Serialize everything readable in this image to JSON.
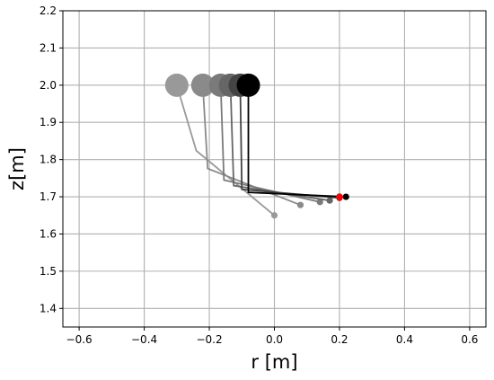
{
  "chart_data": {
    "type": "line",
    "title": "",
    "xlabel": "r [m]",
    "ylabel": "z[m]",
    "xlim": [
      -0.65,
      0.65
    ],
    "ylim": [
      1.35,
      2.2
    ],
    "xticks": [
      -0.6,
      -0.4,
      -0.2,
      0.0,
      0.2,
      0.4,
      0.6
    ],
    "xtick_labels": [
      "−0.6",
      "−0.4",
      "−0.2",
      "0.0",
      "0.2",
      "0.4",
      "0.6"
    ],
    "yticks": [
      1.4,
      1.5,
      1.6,
      1.7,
      1.8,
      1.9,
      2.0,
      2.1,
      2.2
    ],
    "ytick_labels": [
      "1.4",
      "1.5",
      "1.6",
      "1.7",
      "1.8",
      "1.9",
      "2.0",
      "2.1",
      "2.2"
    ],
    "grid": true,
    "series": [
      {
        "color": "#999999",
        "base": [
          -0.3,
          2.0
        ],
        "points": [
          [
            -0.3,
            2.0
          ],
          [
            -0.24,
            1.824
          ],
          [
            0.0,
            1.65
          ]
        ],
        "tip": [
          0.0,
          1.65
        ]
      },
      {
        "color": "#8a8a8a",
        "base": [
          -0.22,
          2.0
        ],
        "points": [
          [
            -0.22,
            2.0
          ],
          [
            -0.205,
            1.776
          ],
          [
            0.08,
            1.678
          ]
        ],
        "tip": [
          0.08,
          1.678
        ]
      },
      {
        "color": "#7a7a7a",
        "base": [
          -0.165,
          2.0
        ],
        "points": [
          [
            -0.165,
            2.0
          ],
          [
            -0.155,
            1.745
          ],
          [
            0.14,
            1.686
          ]
        ],
        "tip": [
          0.14,
          1.686
        ]
      },
      {
        "color": "#666666",
        "base": [
          -0.135,
          2.0
        ],
        "points": [
          [
            -0.135,
            2.0
          ],
          [
            -0.125,
            1.73
          ],
          [
            0.17,
            1.69
          ]
        ],
        "tip": [
          0.17,
          1.69
        ]
      },
      {
        "color": "#444444",
        "base": [
          -0.105,
          2.0
        ],
        "points": [
          [
            -0.105,
            2.0
          ],
          [
            -0.1,
            1.72
          ],
          [
            0.2,
            1.697
          ]
        ],
        "tip": [
          0.2,
          1.697
        ]
      },
      {
        "color": "#000000",
        "base": [
          -0.08,
          2.0
        ],
        "points": [
          [
            -0.08,
            2.0
          ],
          [
            -0.08,
            1.712
          ],
          [
            0.22,
            1.7
          ]
        ],
        "tip": [
          0.22,
          1.7
        ]
      }
    ],
    "target_point": {
      "x": 0.2,
      "y": 1.7,
      "color": "#ff0000"
    }
  }
}
